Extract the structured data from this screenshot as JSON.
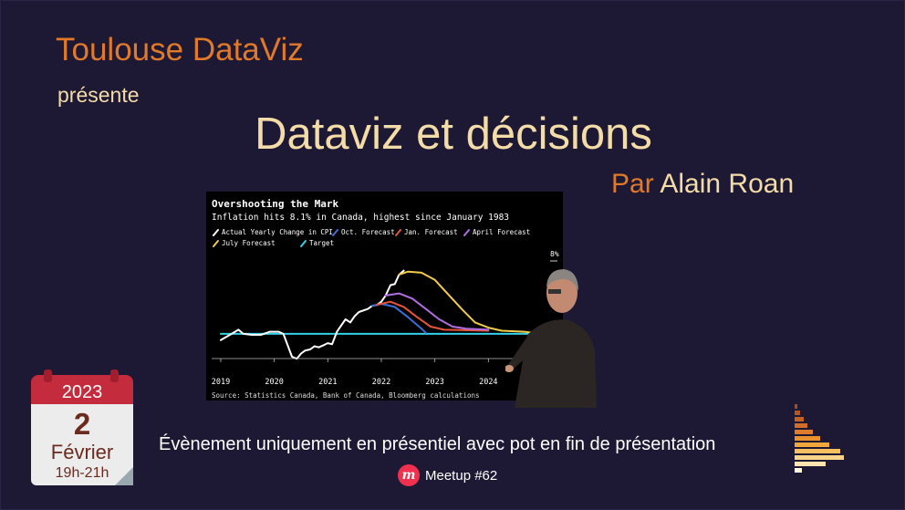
{
  "slide": {
    "org": "Toulouse DataViz",
    "presents": "présente",
    "title": "Dataviz et décisions",
    "speaker_prefix": "Par",
    "speaker_name": "Alain Roan",
    "event_note": "Évènement uniquement en présentiel avec pot en fin de présentation",
    "meetup_label": "Meetup #62"
  },
  "calendar": {
    "year": "2023",
    "day": "2",
    "month": "Février",
    "time": "19h-21h"
  },
  "colors": {
    "background": "#1d1833",
    "accent_orange": "#e07a2a",
    "cream": "#f4dca8",
    "calendar_red": "#c42b3c",
    "meetup_red": "#f0304f"
  },
  "icons": {
    "meetup": "meetup-logo-icon",
    "decoration": "bar-histogram-icon"
  },
  "chart_data": {
    "type": "line",
    "title": "Overshooting the Mark",
    "subtitle": "Inflation hits 8.1% in Canada, highest since January 1983",
    "source": "Source: Statistics Canada, Bank of Canada, Bloomberg calculations",
    "x_ticks": [
      "2019",
      "2020",
      "2021",
      "2022",
      "2023",
      "2024"
    ],
    "y_tick_label": "8%",
    "xlim": [
      2019,
      2025
    ],
    "ylim": [
      -1,
      10
    ],
    "grid": false,
    "legend_position": "top-left",
    "series": [
      {
        "name": "Actual Yearly Change in CPI",
        "color": "#ffffff",
        "points": [
          [
            2019.0,
            1.4
          ],
          [
            2019.17,
            1.9
          ],
          [
            2019.33,
            2.4
          ],
          [
            2019.42,
            2.0
          ],
          [
            2019.58,
            1.9
          ],
          [
            2019.75,
            1.9
          ],
          [
            2019.92,
            2.2
          ],
          [
            2020.08,
            2.2
          ],
          [
            2020.17,
            2.0
          ],
          [
            2020.25,
            0.9
          ],
          [
            2020.33,
            -0.2
          ],
          [
            2020.42,
            -0.4
          ],
          [
            2020.5,
            0.1
          ],
          [
            2020.58,
            0.4
          ],
          [
            2020.67,
            0.5
          ],
          [
            2020.75,
            0.8
          ],
          [
            2020.83,
            0.7
          ],
          [
            2020.92,
            0.9
          ],
          [
            2021.0,
            1.1
          ],
          [
            2021.08,
            1.0
          ],
          [
            2021.17,
            2.2
          ],
          [
            2021.33,
            3.4
          ],
          [
            2021.42,
            3.1
          ],
          [
            2021.5,
            3.7
          ],
          [
            2021.58,
            4.1
          ],
          [
            2021.75,
            4.4
          ],
          [
            2021.83,
            4.7
          ],
          [
            2021.92,
            4.8
          ],
          [
            2022.0,
            5.1
          ],
          [
            2022.08,
            5.7
          ],
          [
            2022.17,
            6.7
          ],
          [
            2022.25,
            6.8
          ],
          [
            2022.33,
            7.7
          ],
          [
            2022.42,
            8.1
          ]
        ]
      },
      {
        "name": "Oct. Forecast",
        "color": "#3b6fd8",
        "points": [
          [
            2021.83,
            4.7
          ],
          [
            2022.0,
            4.9
          ],
          [
            2022.25,
            4.6
          ],
          [
            2022.5,
            3.6
          ],
          [
            2022.75,
            2.5
          ],
          [
            2022.83,
            2.1
          ]
        ]
      },
      {
        "name": "Jan. Forecast",
        "color": "#e8543a",
        "points": [
          [
            2021.92,
            4.8
          ],
          [
            2022.17,
            5.1
          ],
          [
            2022.42,
            4.6
          ],
          [
            2022.67,
            3.6
          ],
          [
            2022.92,
            2.7
          ],
          [
            2023.17,
            2.4
          ],
          [
            2024.0,
            2.3
          ]
        ]
      },
      {
        "name": "April Forecast",
        "color": "#b06ee0",
        "points": [
          [
            2022.08,
            5.7
          ],
          [
            2022.33,
            5.9
          ],
          [
            2022.58,
            5.4
          ],
          [
            2022.83,
            4.4
          ],
          [
            2023.08,
            3.4
          ],
          [
            2023.33,
            2.7
          ],
          [
            2023.58,
            2.5
          ],
          [
            2024.0,
            2.4
          ]
        ]
      },
      {
        "name": "July Forecast",
        "color": "#f0cc4a",
        "points": [
          [
            2022.33,
            7.7
          ],
          [
            2022.5,
            8.0
          ],
          [
            2022.75,
            7.9
          ],
          [
            2023.0,
            7.2
          ],
          [
            2023.25,
            5.8
          ],
          [
            2023.5,
            4.4
          ],
          [
            2023.75,
            3.1
          ],
          [
            2024.0,
            2.6
          ],
          [
            2024.25,
            2.3
          ],
          [
            2024.67,
            2.2
          ],
          [
            2025.0,
            2.0
          ]
        ]
      },
      {
        "name": "Target",
        "color": "#33d1e8",
        "points": [
          [
            2019.0,
            2.0
          ],
          [
            2025.0,
            2.0
          ]
        ]
      }
    ]
  }
}
